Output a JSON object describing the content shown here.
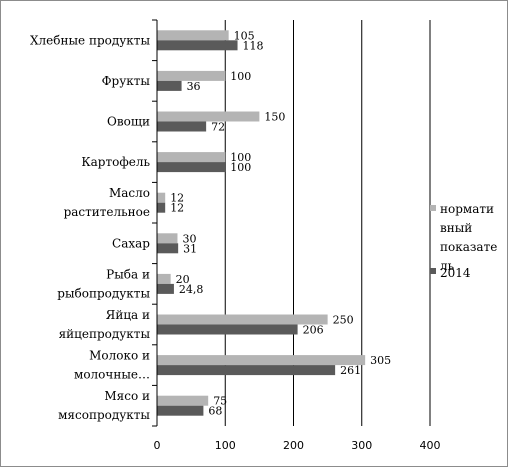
{
  "chart_data": {
    "type": "bar",
    "orientation": "horizontal",
    "categories": [
      "Хлебные продукты",
      "Фрукты",
      "Овощи",
      "Картофель",
      "Масло растительное",
      "Сахар",
      "Рыба и рыбопродукты",
      "Яйца и яйцепродукты",
      "Молоко и молочные…",
      "Мясо и мясопродукты"
    ],
    "category_lines": [
      [
        "Хлебные продукты"
      ],
      [
        "Фрукты"
      ],
      [
        "Овощи"
      ],
      [
        "Картофель"
      ],
      [
        "Масло",
        "растительное"
      ],
      [
        "Сахар"
      ],
      [
        "Рыба и",
        "рыбопродукты"
      ],
      [
        "Яйца и",
        "яйцепродукты"
      ],
      [
        "Молоко и",
        "молочные…"
      ],
      [
        "Мясо и",
        "мясопродукты"
      ]
    ],
    "series": [
      {
        "name": "норматиный показатель",
        "color": "#b4b4b4",
        "values": [
          105,
          100,
          150,
          100,
          12,
          30,
          20,
          250,
          305,
          75
        ],
        "labels": [
          "105",
          "100",
          "150",
          "100",
          "12",
          "30",
          "20",
          "250",
          "305",
          "75"
        ]
      },
      {
        "name": "2014",
        "color": "#5a5a5a",
        "values": [
          118,
          36,
          72,
          100,
          12,
          31,
          24.8,
          206,
          261,
          68
        ],
        "labels": [
          "118",
          "36",
          "72",
          "100",
          "12",
          "31",
          "24,8",
          "206",
          "261",
          "68"
        ]
      }
    ],
    "legend": {
      "position": "right",
      "entries": [
        {
          "lines": [
            "нормати",
            "вный",
            "показате",
            "ль"
          ],
          "color": "#b4b4b4"
        },
        {
          "lines": [
            "2014"
          ],
          "color": "#5a5a5a"
        }
      ]
    },
    "xlim": [
      0,
      400
    ],
    "xticks": [
      0,
      100,
      200,
      300,
      400
    ],
    "grid": "vertical",
    "title": "",
    "xlabel": "",
    "ylabel": ""
  }
}
